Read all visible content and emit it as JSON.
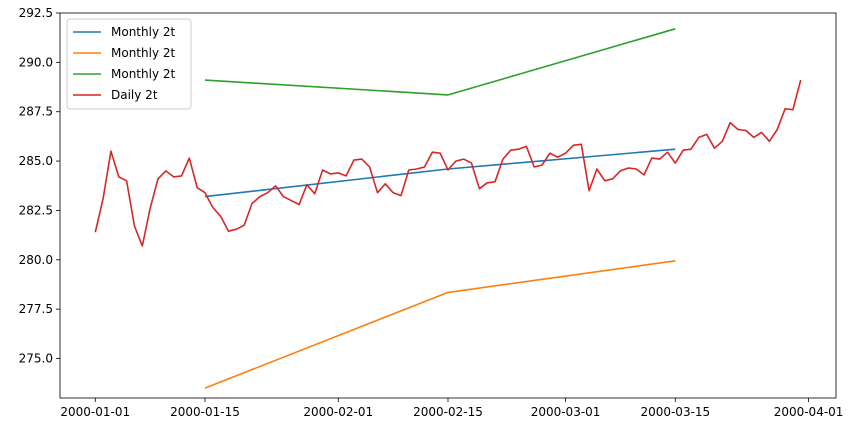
{
  "chart_data": {
    "type": "line",
    "title": "",
    "xlabel": "",
    "ylabel": "",
    "xlim": [
      "2000-01-01",
      "2000-03-31"
    ],
    "ylim": [
      273.0,
      292.5
    ],
    "grid": false,
    "legend_position": "top-left",
    "x_ticks": [
      "2000-01-01",
      "2000-01-15",
      "2000-02-01",
      "2000-02-15",
      "2000-03-01",
      "2000-03-15",
      "2000-04-01"
    ],
    "y_ticks": [
      "275.0",
      "277.5",
      "280.0",
      "282.5",
      "285.0",
      "287.5",
      "290.0",
      "292.5"
    ],
    "series": [
      {
        "name": "Monthly 2t",
        "color": "#1f77b4",
        "x": [
          "2000-01-15",
          "2000-02-15",
          "2000-03-15"
        ],
        "y": [
          283.2,
          284.6,
          285.6
        ]
      },
      {
        "name": "Monthly 2t",
        "color": "#ff7f0e",
        "x": [
          "2000-01-15",
          "2000-02-15",
          "2000-03-15"
        ],
        "y": [
          273.5,
          278.35,
          279.95
        ]
      },
      {
        "name": "Monthly 2t",
        "color": "#2ca02c",
        "x": [
          "2000-01-15",
          "2000-02-15",
          "2000-03-15"
        ],
        "y": [
          289.1,
          288.35,
          291.7
        ]
      },
      {
        "name": "Daily 2t",
        "color": "#d62728",
        "x": [
          "2000-01-01",
          "2000-01-02",
          "2000-01-03",
          "2000-01-04",
          "2000-01-05",
          "2000-01-06",
          "2000-01-07",
          "2000-01-08",
          "2000-01-09",
          "2000-01-10",
          "2000-01-11",
          "2000-01-12",
          "2000-01-13",
          "2000-01-14",
          "2000-01-15",
          "2000-01-16",
          "2000-01-17",
          "2000-01-18",
          "2000-01-19",
          "2000-01-20",
          "2000-01-21",
          "2000-01-22",
          "2000-01-23",
          "2000-01-24",
          "2000-01-25",
          "2000-01-26",
          "2000-01-27",
          "2000-01-28",
          "2000-01-29",
          "2000-01-30",
          "2000-01-31",
          "2000-02-01",
          "2000-02-02",
          "2000-02-03",
          "2000-02-04",
          "2000-02-05",
          "2000-02-06",
          "2000-02-07",
          "2000-02-08",
          "2000-02-09",
          "2000-02-10",
          "2000-02-11",
          "2000-02-12",
          "2000-02-13",
          "2000-02-14",
          "2000-02-15",
          "2000-02-16",
          "2000-02-17",
          "2000-02-18",
          "2000-02-19",
          "2000-02-20",
          "2000-02-21",
          "2000-02-22",
          "2000-02-23",
          "2000-02-24",
          "2000-02-25",
          "2000-02-26",
          "2000-02-27",
          "2000-02-28",
          "2000-02-29",
          "2000-03-01",
          "2000-03-02",
          "2000-03-03",
          "2000-03-04",
          "2000-03-05",
          "2000-03-06",
          "2000-03-07",
          "2000-03-08",
          "2000-03-09",
          "2000-03-10",
          "2000-03-11",
          "2000-03-12",
          "2000-03-13",
          "2000-03-14",
          "2000-03-15",
          "2000-03-16",
          "2000-03-17",
          "2000-03-18",
          "2000-03-19",
          "2000-03-20",
          "2000-03-21",
          "2000-03-22",
          "2000-03-23",
          "2000-03-24",
          "2000-03-25",
          "2000-03-26",
          "2000-03-27",
          "2000-03-28",
          "2000-03-29",
          "2000-03-30",
          "2000-03-31"
        ],
        "y": [
          281.4,
          283.1,
          285.5,
          284.2,
          284.0,
          281.7,
          280.7,
          282.6,
          284.1,
          284.5,
          284.2,
          284.25,
          285.15,
          283.65,
          283.4,
          282.65,
          282.2,
          281.45,
          281.55,
          281.75,
          282.85,
          283.2,
          283.4,
          283.75,
          283.2,
          283.0,
          282.8,
          283.8,
          283.35,
          284.55,
          284.35,
          284.4,
          284.25,
          285.05,
          285.1,
          284.7,
          283.4,
          283.85,
          283.4,
          283.25,
          284.55,
          284.6,
          284.7,
          285.45,
          285.4,
          284.55,
          285.0,
          285.1,
          284.9,
          283.6,
          283.9,
          283.95,
          285.1,
          285.55,
          285.6,
          285.75,
          284.7,
          284.8,
          285.4,
          285.2,
          285.4,
          285.8,
          285.85,
          283.5,
          284.6,
          284.0,
          284.1,
          284.5,
          284.65,
          284.6,
          284.3,
          285.15,
          285.1,
          285.45,
          284.9,
          285.55,
          285.6,
          286.2,
          286.35,
          285.65,
          286.0,
          286.95,
          286.6,
          286.55,
          286.2,
          286.45,
          286.0,
          286.6,
          287.65,
          287.6,
          289.1
        ]
      }
    ]
  }
}
